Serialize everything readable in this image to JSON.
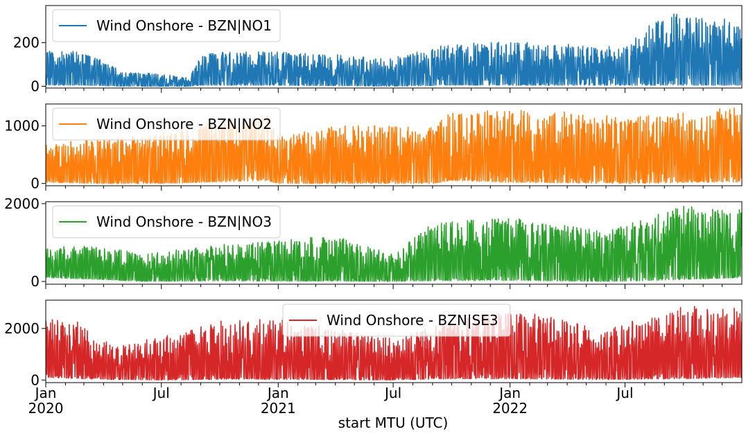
{
  "chart_data": {
    "type": "line",
    "xlabel": "start MTU (UTC)",
    "x_range": [
      "2020-01-01",
      "2022-12-31"
    ],
    "x_major_ticks": [
      {
        "date": "2020-01-01",
        "line1": "Jan",
        "line2": "2020"
      },
      {
        "date": "2020-07-01",
        "line1": "Jul",
        "line2": ""
      },
      {
        "date": "2021-01-01",
        "line1": "Jan",
        "line2": "2021"
      },
      {
        "date": "2021-07-01",
        "line1": "Jul",
        "line2": ""
      },
      {
        "date": "2022-01-01",
        "line1": "Jan",
        "line2": "2022"
      },
      {
        "date": "2022-07-01",
        "line1": "Jul",
        "line2": ""
      }
    ],
    "legend_location": [
      "upper left",
      "upper left",
      "upper left",
      "upper center"
    ],
    "panels": [
      {
        "name": "Wind Onshore - BZN|NO1",
        "color": "#1f77b4",
        "ylim": [
          -8,
          370
        ],
        "yticks": [
          0,
          200
        ],
        "envelope": [
          {
            "date": "2020-01-01",
            "min": 5,
            "max": 165
          },
          {
            "date": "2020-03-01",
            "min": 5,
            "max": 160
          },
          {
            "date": "2020-05-01",
            "min": 0,
            "max": 70
          },
          {
            "date": "2020-07-01",
            "min": 0,
            "max": 55
          },
          {
            "date": "2020-08-15",
            "min": 0,
            "max": 40
          },
          {
            "date": "2020-09-01",
            "min": 5,
            "max": 155
          },
          {
            "date": "2021-01-01",
            "min": 5,
            "max": 160
          },
          {
            "date": "2021-07-01",
            "min": 0,
            "max": 130
          },
          {
            "date": "2021-10-01",
            "min": 5,
            "max": 200
          },
          {
            "date": "2022-01-01",
            "min": 5,
            "max": 205
          },
          {
            "date": "2022-07-01",
            "min": 5,
            "max": 180
          },
          {
            "date": "2022-09-01",
            "min": 5,
            "max": 340
          },
          {
            "date": "2022-12-31",
            "min": 5,
            "max": 300
          }
        ]
      },
      {
        "name": "Wind Onshore - BZN|NO2",
        "color": "#ff7f0e",
        "ylim": [
          -40,
          1380
        ],
        "yticks": [
          0,
          1000
        ],
        "envelope": [
          {
            "date": "2020-01-01",
            "min": 20,
            "max": 720
          },
          {
            "date": "2020-04-01",
            "min": 0,
            "max": 780
          },
          {
            "date": "2020-07-01",
            "min": 0,
            "max": 900
          },
          {
            "date": "2020-10-01",
            "min": 30,
            "max": 1100
          },
          {
            "date": "2020-12-15",
            "min": 50,
            "max": 1200
          },
          {
            "date": "2021-01-01",
            "min": 0,
            "max": 800
          },
          {
            "date": "2021-04-01",
            "min": 0,
            "max": 1050
          },
          {
            "date": "2021-09-01",
            "min": 0,
            "max": 1000
          },
          {
            "date": "2021-10-01",
            "min": 50,
            "max": 1250
          },
          {
            "date": "2022-01-01",
            "min": 20,
            "max": 1320
          },
          {
            "date": "2022-07-01",
            "min": 0,
            "max": 1150
          },
          {
            "date": "2022-12-31",
            "min": 30,
            "max": 1330
          }
        ]
      },
      {
        "name": "Wind Onshore - BZN|NO3",
        "color": "#2ca02c",
        "ylim": [
          -70,
          2050
        ],
        "yticks": [
          0,
          2000
        ],
        "envelope": [
          {
            "date": "2020-01-01",
            "min": 100,
            "max": 900
          },
          {
            "date": "2020-04-01",
            "min": 50,
            "max": 900
          },
          {
            "date": "2020-06-01",
            "min": 0,
            "max": 700
          },
          {
            "date": "2020-10-01",
            "min": 20,
            "max": 950
          },
          {
            "date": "2021-01-01",
            "min": 10,
            "max": 1050
          },
          {
            "date": "2021-04-01",
            "min": 10,
            "max": 1200
          },
          {
            "date": "2021-07-01",
            "min": 0,
            "max": 700
          },
          {
            "date": "2021-09-01",
            "min": 20,
            "max": 1500
          },
          {
            "date": "2022-01-01",
            "min": 30,
            "max": 1650
          },
          {
            "date": "2022-06-01",
            "min": 0,
            "max": 1300
          },
          {
            "date": "2022-10-01",
            "min": 50,
            "max": 1950
          },
          {
            "date": "2022-12-31",
            "min": 100,
            "max": 1850
          }
        ]
      },
      {
        "name": "Wind Onshore - BZN|SE3",
        "color": "#d62728",
        "ylim": [
          -100,
          3100
        ],
        "yticks": [
          0,
          2000
        ],
        "envelope": [
          {
            "date": "2020-01-01",
            "min": 100,
            "max": 2400
          },
          {
            "date": "2020-03-01",
            "min": 50,
            "max": 2300
          },
          {
            "date": "2020-04-15",
            "min": 20,
            "max": 1300
          },
          {
            "date": "2020-07-01",
            "min": 0,
            "max": 1700
          },
          {
            "date": "2020-10-01",
            "min": 30,
            "max": 2300
          },
          {
            "date": "2021-01-01",
            "min": 30,
            "max": 2400
          },
          {
            "date": "2021-07-01",
            "min": 0,
            "max": 1600
          },
          {
            "date": "2021-10-01",
            "min": 50,
            "max": 2300
          },
          {
            "date": "2022-01-01",
            "min": 50,
            "max": 2800
          },
          {
            "date": "2022-06-01",
            "min": 20,
            "max": 2000
          },
          {
            "date": "2022-10-01",
            "min": 50,
            "max": 2900
          },
          {
            "date": "2022-12-31",
            "min": 100,
            "max": 2800
          }
        ]
      }
    ]
  }
}
